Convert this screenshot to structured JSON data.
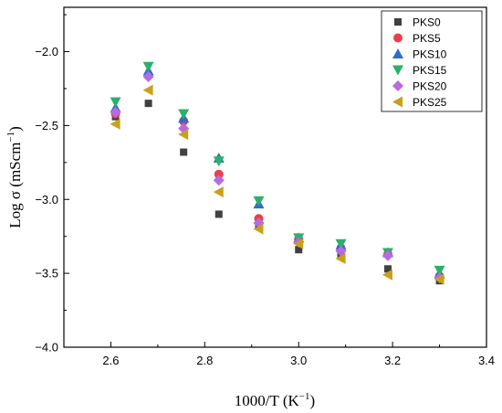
{
  "chart_data": {
    "type": "scatter",
    "title": "",
    "xlabel": "1000/T (K",
    "xlabel_sup": "−1",
    "xlabel_suffix": ")",
    "ylabel": "Log σ (mScm",
    "ylabel_sup": "−1",
    "ylabel_suffix": ")",
    "xlim": [
      2.5,
      3.4
    ],
    "ylim": [
      -4.0,
      -1.7
    ],
    "xticks": [
      2.6,
      2.8,
      3.0,
      3.2,
      3.4
    ],
    "xtick_labels": [
      "2.6",
      "2.8",
      "3.0",
      "3.2",
      "3.4"
    ],
    "yticks": [
      -4.0,
      -3.5,
      -3.0,
      -2.5,
      -2.0
    ],
    "ytick_labels": [
      "−4.0",
      "−3.5",
      "−3.0",
      "−2.5",
      "−2.0"
    ],
    "grid": false,
    "legend_position": "top-right",
    "x": [
      2.61,
      2.68,
      2.755,
      2.83,
      2.915,
      3.0,
      3.09,
      3.19,
      3.3
    ],
    "series": [
      {
        "name": "PKS0",
        "marker": "square",
        "color": "#404040",
        "values": [
          -2.44,
          -2.35,
          -2.68,
          -3.1,
          -3.17,
          -3.34,
          -3.38,
          -3.47,
          -3.55
        ]
      },
      {
        "name": "PKS5",
        "marker": "circle",
        "color": "#e8404a",
        "values": [
          -2.42,
          -2.16,
          -2.47,
          -2.83,
          -3.13,
          -3.27,
          -3.33,
          -3.37,
          -3.52
        ]
      },
      {
        "name": "PKS10",
        "marker": "triangle-up",
        "color": "#2f6ccf",
        "values": [
          -2.38,
          -2.13,
          -2.45,
          -2.72,
          -3.03,
          -3.26,
          -3.31,
          -3.36,
          -3.5
        ]
      },
      {
        "name": "PKS15",
        "marker": "triangle-down",
        "color": "#2bb06a",
        "values": [
          -2.34,
          -2.1,
          -2.42,
          -2.74,
          -3.01,
          -3.26,
          -3.3,
          -3.36,
          -3.48
        ]
      },
      {
        "name": "PKS20",
        "marker": "diamond",
        "color": "#b86adf",
        "values": [
          -2.41,
          -2.17,
          -2.52,
          -2.87,
          -3.16,
          -3.29,
          -3.35,
          -3.38,
          -3.53
        ]
      },
      {
        "name": "PKS25",
        "marker": "triangle-left",
        "color": "#c9a01a",
        "values": [
          -2.49,
          -2.26,
          -2.56,
          -2.95,
          -3.2,
          -3.3,
          -3.4,
          -3.51,
          -3.54
        ]
      }
    ]
  }
}
